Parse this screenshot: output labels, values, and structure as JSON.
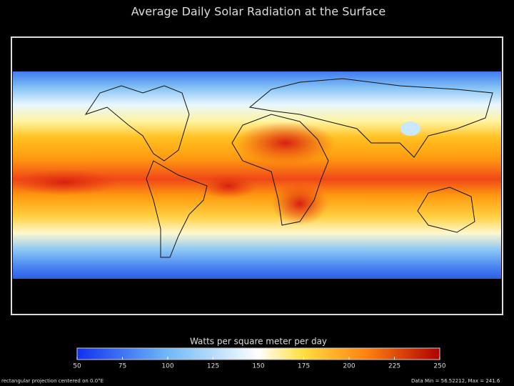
{
  "title": "Average Daily Solar Radiation at the Surface",
  "colorbar": {
    "label": "Watts per square meter per day",
    "range": [
      50,
      250
    ],
    "ticks": [
      50,
      75,
      100,
      125,
      150,
      175,
      200,
      225,
      250
    ]
  },
  "footer": {
    "projection": "rectangular projection centered on 0.0°E",
    "data_range": "Data Min = 56.52212, Max = 241.6"
  }
}
